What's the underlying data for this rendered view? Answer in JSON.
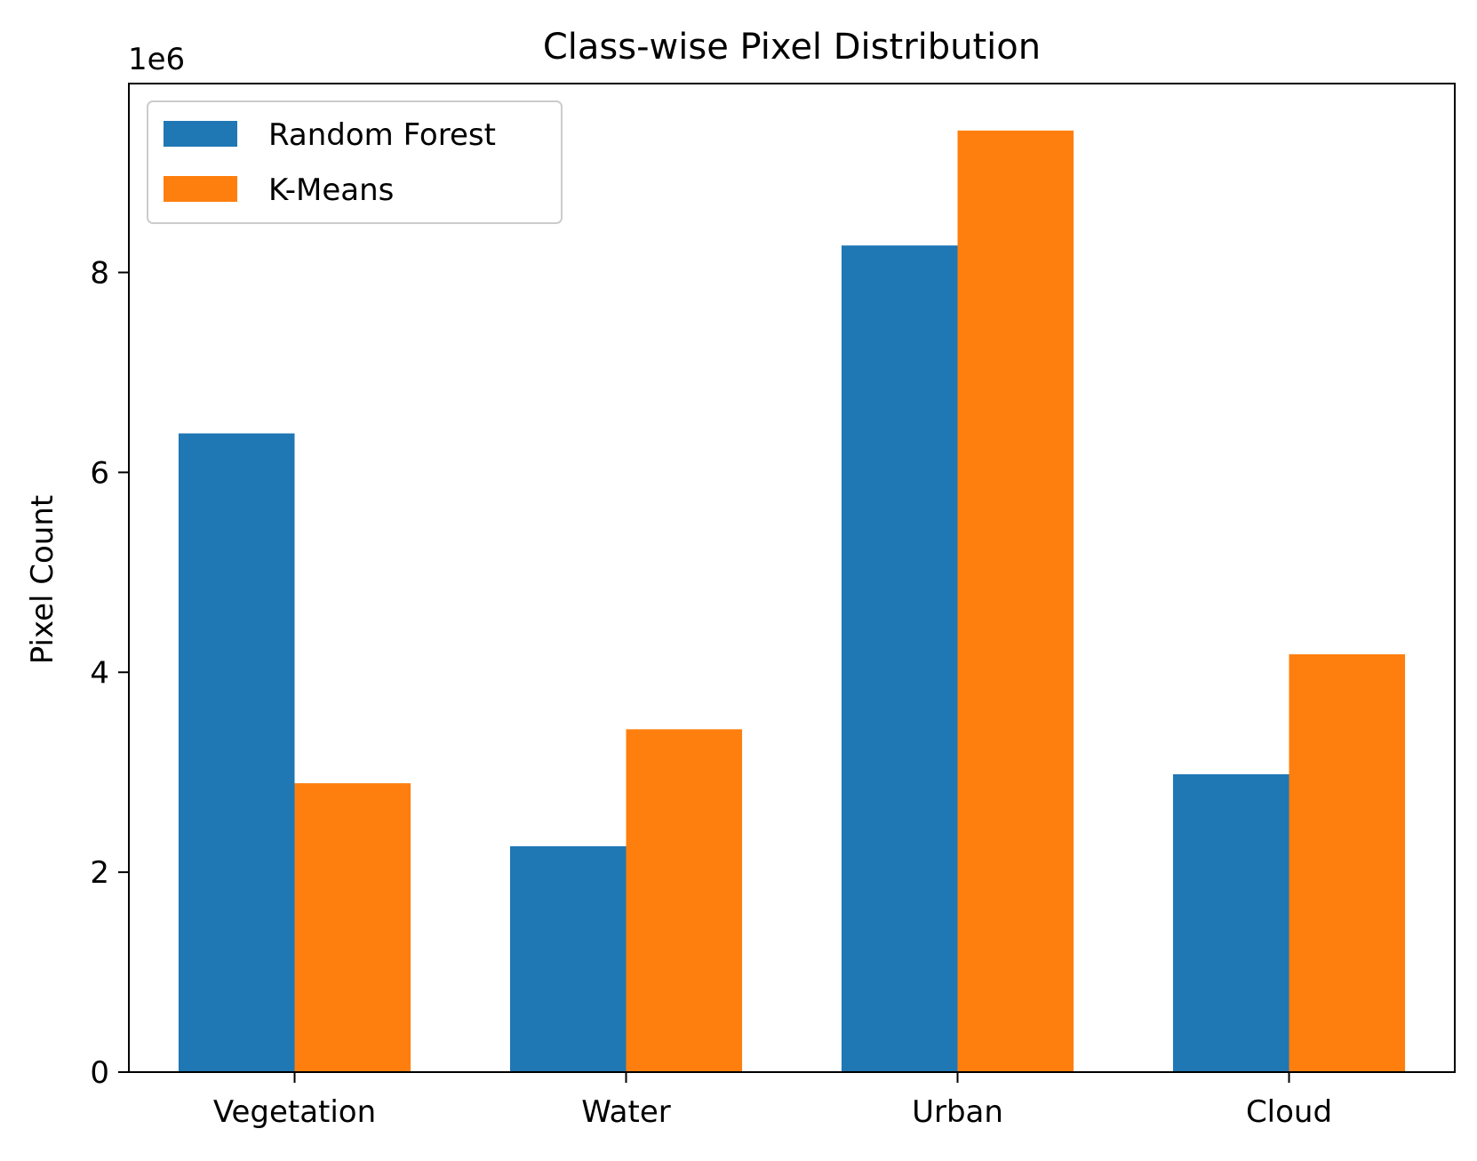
{
  "chart_data": {
    "type": "bar",
    "title": "Class-wise Pixel Distribution",
    "xlabel": "",
    "ylabel": "Pixel Count",
    "y_offset_label": "1e6",
    "categories": [
      "Vegetation",
      "Water",
      "Urban",
      "Cloud"
    ],
    "series": [
      {
        "name": "Random Forest",
        "color": "#1f77b4",
        "values": [
          6390000,
          2260000,
          8270000,
          2980000
        ]
      },
      {
        "name": "K-Means",
        "color": "#ff7f0e",
        "values": [
          2890000,
          3430000,
          9420000,
          4180000
        ]
      }
    ],
    "y_ticks": [
      0,
      2000000,
      4000000,
      6000000,
      8000000
    ],
    "y_tick_labels": [
      "0",
      "2",
      "4",
      "6",
      "8"
    ],
    "ylim": [
      0,
      9890000
    ],
    "grid": false,
    "legend_position": "top-left"
  }
}
